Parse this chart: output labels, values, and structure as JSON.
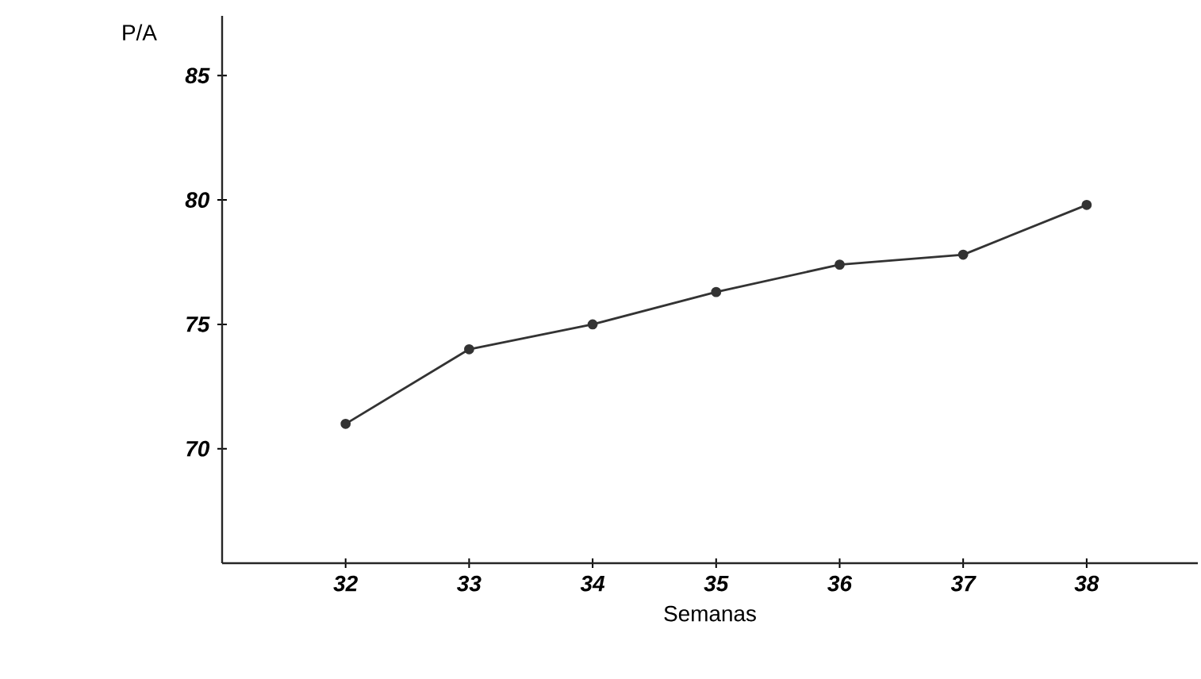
{
  "chart_data": {
    "type": "line",
    "xlabel": "Semanas",
    "ylabel": "P/A",
    "x": [
      32,
      33,
      34,
      35,
      36,
      37,
      38
    ],
    "values": [
      71,
      74,
      75,
      76.3,
      77.4,
      77.8,
      79.8
    ],
    "color": "#333333",
    "marker": "circle",
    "line_style": "solid",
    "xlim": [
      31,
      38.9
    ],
    "xticks": [
      32,
      33,
      34,
      35,
      36,
      37,
      38
    ],
    "ylim": [
      65.4,
      87.4
    ],
    "yticks": [
      70,
      75,
      80,
      85
    ]
  }
}
